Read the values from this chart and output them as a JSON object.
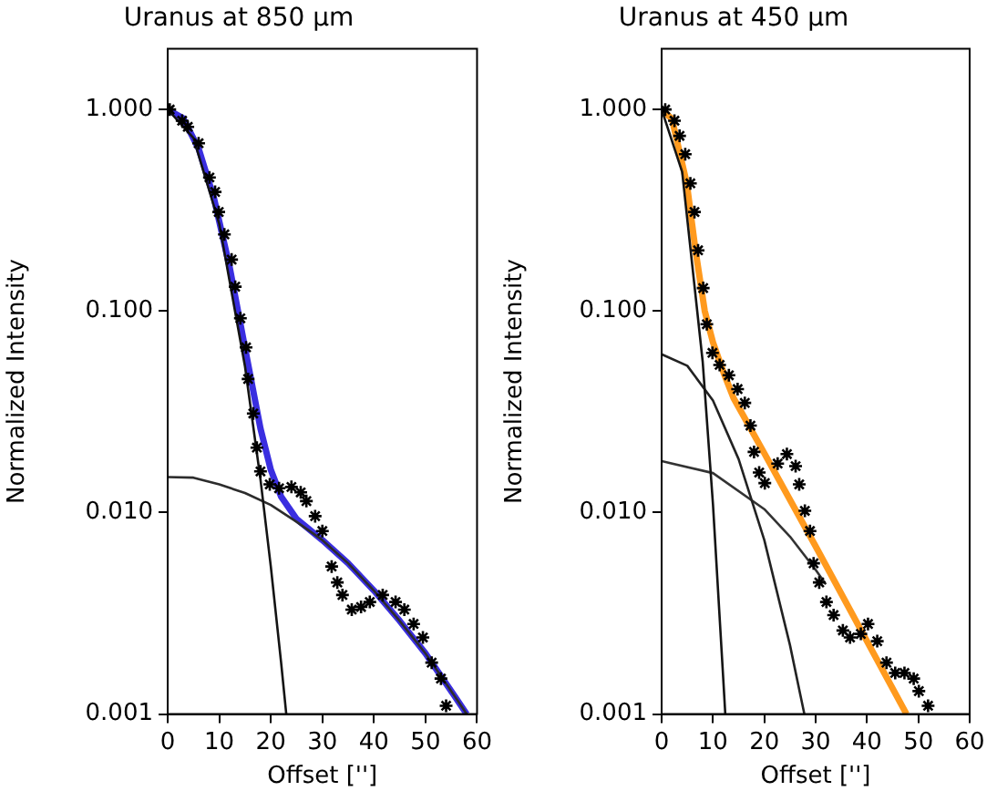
{
  "chart_data": [
    {
      "type": "line",
      "title": "Uranus at 850 μm",
      "xlabel": "Offset ['']",
      "ylabel": "Normalized Intensity",
      "log": "y",
      "grid": false,
      "legend": false,
      "xlim": [
        0,
        60
      ],
      "xticks": [
        0,
        10,
        20,
        30,
        40,
        50,
        60
      ],
      "ylim": [
        0.001,
        2
      ],
      "yticks": [
        {
          "value": 0.001,
          "label": "0.001"
        },
        {
          "value": 0.01,
          "label": "0.010"
        },
        {
          "value": 0.1,
          "label": "0.100"
        },
        {
          "value": 1,
          "label": "1.000"
        }
      ],
      "series": [
        {
          "color": "#141414",
          "x": [
            0,
            5,
            10,
            15,
            18,
            20,
            22,
            23
          ],
          "values": [
            1,
            0.722,
            0.271,
            0.053,
            0.0146,
            0.0054,
            0.0018,
            0.001
          ]
        },
        {
          "color": "#2c2c2c",
          "x": [
            0,
            5,
            10,
            15,
            20,
            25,
            30,
            35,
            40,
            45,
            50,
            55,
            58
          ],
          "values": [
            0.015,
            0.0149,
            0.0138,
            0.0125,
            0.0109,
            0.009,
            0.0073,
            0.0056,
            0.0041,
            0.0029,
            0.002,
            0.0013,
            0.001
          ]
        },
        {
          "color": "#3a2ee0",
          "x": [
            0,
            3,
            6,
            9,
            12,
            15,
            18,
            20,
            22,
            25,
            30,
            35,
            40,
            45,
            50,
            55,
            58
          ],
          "values": [
            1.0,
            0.904,
            0.64,
            0.361,
            0.166,
            0.0655,
            0.0261,
            0.0163,
            0.012,
            0.0093,
            0.0073,
            0.0056,
            0.0041,
            0.0029,
            0.002,
            0.0013,
            0.001
          ]
        },
        {
          "type": "scatter",
          "marker": "cross",
          "color": "#000000",
          "x": [
            0.4,
            2.8,
            3.9,
            6,
            8.1,
            9.2,
            9.9,
            11,
            12.4,
            13.1,
            14.1,
            15.2,
            15.6,
            16.6,
            17.3,
            18,
            19.8,
            21.6,
            24,
            25.8,
            26.9,
            28.6,
            30,
            31.8,
            32.9,
            33.9,
            35.7,
            37.5,
            39.2,
            41.7,
            44.2,
            45.9,
            47.7,
            49.5,
            51.2,
            53,
            54
          ],
          "values": [
            1.0,
            0.88,
            0.82,
            0.68,
            0.46,
            0.39,
            0.31,
            0.24,
            0.18,
            0.132,
            0.092,
            0.066,
            0.046,
            0.031,
            0.021,
            0.016,
            0.0138,
            0.0132,
            0.0134,
            0.0126,
            0.0114,
            0.0096,
            0.0081,
            0.0054,
            0.0045,
            0.0039,
            0.0033,
            0.0034,
            0.0036,
            0.0039,
            0.0036,
            0.0033,
            0.0028,
            0.0024,
            0.0018,
            0.0015,
            0.0011
          ]
        }
      ]
    },
    {
      "type": "line",
      "title": "Uranus at 450 μm",
      "xlabel": "Offset ['']",
      "ylabel": "Normalized Intensity",
      "log": "y",
      "grid": false,
      "legend": false,
      "xlim": [
        0,
        60
      ],
      "xticks": [
        0,
        10,
        20,
        30,
        40,
        50,
        60
      ],
      "ylim": [
        0.001,
        2
      ],
      "yticks": [
        {
          "value": 0.001,
          "label": "0.001"
        },
        {
          "value": 0.01,
          "label": "0.010"
        },
        {
          "value": 0.1,
          "label": "0.100"
        },
        {
          "value": 1,
          "label": "1.000"
        }
      ],
      "series": [
        {
          "color": "#141414",
          "x": [
            0,
            4,
            8,
            10,
            12,
            12.4
          ],
          "values": [
            1,
            0.49,
            0.056,
            0.011,
            0.0015,
            0.001
          ]
        },
        {
          "color": "#222222",
          "x": [
            0,
            5,
            10,
            15,
            20,
            25,
            27.8
          ],
          "values": [
            0.061,
            0.0535,
            0.036,
            0.0184,
            0.0073,
            0.0022,
            0.001
          ]
        },
        {
          "color": "#333333",
          "x": [
            0,
            10,
            20,
            25,
            30,
            32
          ],
          "values": [
            0.018,
            0.0157,
            0.0104,
            0.0076,
            0.0052,
            0.0044
          ]
        },
        {
          "color": "#ff9a1e",
          "x": [
            0,
            2,
            4.9,
            6.6,
            8.4,
            10,
            12,
            14,
            20,
            30,
            40,
            47.7
          ],
          "values": [
            1.0,
            0.9,
            0.43,
            0.2,
            0.1,
            0.07,
            0.05,
            0.037,
            0.0197,
            0.0068,
            0.0023,
            0.001
          ]
        },
        {
          "type": "scatter",
          "marker": "cross",
          "color": "#000000",
          "x": [
            0.7,
            2.5,
            3.5,
            4.6,
            5.6,
            6.4,
            7.1,
            8.1,
            8.8,
            9.9,
            11.3,
            13.1,
            14.8,
            16.2,
            17.3,
            18,
            19,
            20.1,
            22.6,
            24.4,
            26.1,
            26.8,
            27.9,
            28.9,
            29.6,
            30.7,
            32.1,
            33.5,
            35.3,
            36.7,
            38.8,
            40.2,
            42,
            43.8,
            45.5,
            47.3,
            49.1,
            50.1,
            51.9
          ],
          "values": [
            1.0,
            0.88,
            0.74,
            0.6,
            0.43,
            0.31,
            0.2,
            0.13,
            0.086,
            0.062,
            0.054,
            0.048,
            0.041,
            0.035,
            0.027,
            0.02,
            0.0158,
            0.014,
            0.0175,
            0.0195,
            0.017,
            0.0138,
            0.0102,
            0.0081,
            0.0056,
            0.0045,
            0.0036,
            0.0031,
            0.0026,
            0.0024,
            0.0025,
            0.0028,
            0.0023,
            0.0018,
            0.0016,
            0.0016,
            0.0015,
            0.0013,
            0.0011
          ]
        }
      ]
    }
  ]
}
